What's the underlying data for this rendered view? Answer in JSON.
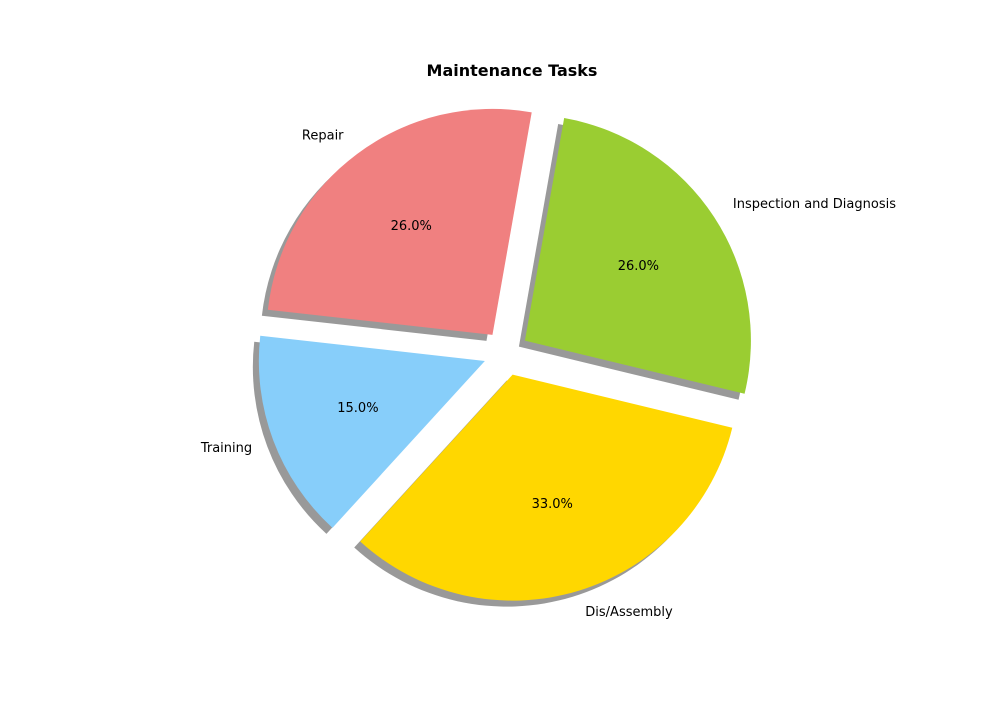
{
  "chart_data": {
    "type": "pie",
    "title": "Maintenance Tasks",
    "categories": [
      "Repair",
      "Training",
      "Dis/Assembly",
      "Inspection and Diagnosis"
    ],
    "values": [
      26.0,
      15.0,
      33.0,
      26.0
    ],
    "percent_labels": [
      "26.0%",
      "15.0%",
      "33.0%",
      "26.0%"
    ],
    "colors": [
      "#f08080",
      "#87cefa",
      "#ffd700",
      "#9acd32"
    ],
    "shadow": true,
    "exploded": true,
    "legend": "none"
  }
}
